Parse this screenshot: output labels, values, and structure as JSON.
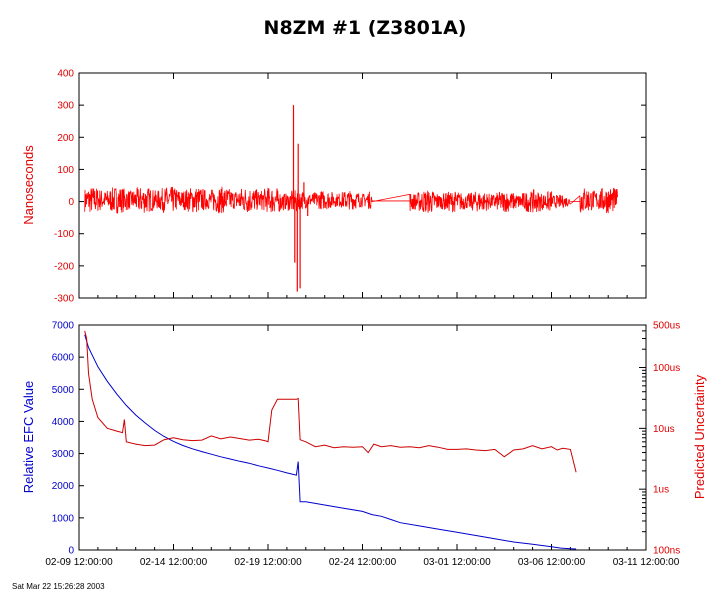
{
  "page": {
    "footer_timestamp": "Sat Mar 22 15:26:28 2003"
  },
  "chart_data": [
    {
      "type": "line",
      "title": "N8ZM #1 (Z3801A)",
      "ylabel": "Nanoseconds",
      "ylim": [
        -300,
        400
      ],
      "yticks": [
        -300,
        -200,
        -100,
        0,
        100,
        200,
        300,
        400
      ],
      "xlim": [
        0,
        30
      ],
      "x_unit": "days from 02-09 12:00:00",
      "grid": false,
      "series": [
        {
          "color": "#ff0000",
          "segments": [
            {
              "x": [
                0.3,
                10.5
              ],
              "amp": 28,
              "base": 5
            },
            {
              "x": [
                10.5,
                11.6
              ],
              "amp": 25,
              "base": 0
            },
            {
              "x": [
                11.6,
                15.5
              ],
              "amp": 20,
              "base": 5
            },
            {
              "x": [
                17.5,
                19.0
              ],
              "amp": 25,
              "base": 0
            },
            {
              "x": [
                19.0,
                24.0
              ],
              "amp": 22,
              "base": 0
            },
            {
              "x": [
                24.0,
                25.0
              ],
              "amp": 25,
              "base": 0
            },
            {
              "x": [
                25.0,
                26.0
              ],
              "amp": 14,
              "base": 0
            },
            {
              "x": [
                26.5,
                28.5
              ],
              "amp": 28,
              "base": 5
            }
          ],
          "spikes": [
            {
              "x": 11.35,
              "y": 300
            },
            {
              "x": 11.42,
              "y": -190
            },
            {
              "x": 11.55,
              "y": -280
            },
            {
              "x": 11.6,
              "y": 180
            },
            {
              "x": 11.7,
              "y": -270
            },
            {
              "x": 11.9,
              "y": 60
            },
            {
              "x": 12.1,
              "y": -45
            }
          ]
        }
      ]
    },
    {
      "type": "line",
      "ylabel": "Relative EFC Value",
      "ylim": [
        0,
        7000
      ],
      "yticks": [
        0,
        1000,
        2000,
        3000,
        4000,
        5000,
        6000,
        7000
      ],
      "y2label": "Predicted Uncertainty",
      "y2_scale": "log",
      "y2lim_ns": [
        100,
        500000
      ],
      "y2ticks": [
        {
          "label": "100ns",
          "value_ns": 100
        },
        {
          "label": "1us",
          "value_ns": 1000
        },
        {
          "label": "10us",
          "value_ns": 10000
        },
        {
          "label": "100us",
          "value_ns": 100000
        },
        {
          "label": "500us",
          "value_ns": 500000
        }
      ],
      "xlim": [
        0,
        30
      ],
      "xticks": [
        {
          "label": "02-09 12:00:00",
          "x": 0
        },
        {
          "label": "02-14 12:00:00",
          "x": 5
        },
        {
          "label": "02-19 12:00:00",
          "x": 10
        },
        {
          "label": "02-24 12:00:00",
          "x": 15
        },
        {
          "label": "03-01 12:00:00",
          "x": 20
        },
        {
          "label": "03-06 12:00:00",
          "x": 25
        },
        {
          "label": "03-11 12:00:00",
          "x": 30
        }
      ],
      "grid": false,
      "series": [
        {
          "color": "#0000cc",
          "axis": "left",
          "x": [
            0.3,
            0.5,
            1,
            1.5,
            2,
            2.5,
            3,
            3.5,
            4,
            4.5,
            5,
            5.5,
            6,
            6.5,
            7,
            7.5,
            8,
            8.5,
            9,
            9.5,
            10,
            10.5,
            11,
            11.5,
            11.6,
            11.7,
            12,
            13,
            14,
            15,
            15.5,
            16,
            16.5,
            17,
            18,
            19,
            20,
            21,
            22,
            23,
            24,
            25,
            25.5,
            26,
            26.3
          ],
          "y": [
            6700,
            6300,
            5700,
            5250,
            4850,
            4500,
            4200,
            3950,
            3720,
            3530,
            3380,
            3250,
            3150,
            3060,
            2980,
            2900,
            2830,
            2760,
            2700,
            2620,
            2550,
            2480,
            2400,
            2330,
            2750,
            1500,
            1500,
            1400,
            1300,
            1200,
            1100,
            1050,
            950,
            850,
            750,
            650,
            550,
            450,
            350,
            250,
            180,
            100,
            60,
            40,
            30
          ]
        },
        {
          "color": "#cc0000",
          "axis": "right",
          "x": [
            0.3,
            0.4,
            0.5,
            0.7,
            1,
            1.5,
            2,
            2.3,
            2.4,
            2.5,
            3,
            3.5,
            4,
            4.5,
            5,
            5.5,
            6,
            6.5,
            7,
            7.5,
            8,
            8.5,
            9,
            9.5,
            9.9,
            10,
            10.2,
            10.5,
            11,
            11.5,
            11.6,
            11.7,
            12,
            12.5,
            13,
            13.5,
            14,
            14.5,
            15,
            15.3,
            15.6,
            16,
            16.5,
            17,
            17.5,
            18,
            18.5,
            19,
            19.5,
            20,
            20.5,
            21,
            21.5,
            22,
            22.5,
            23,
            23.5,
            24,
            24.5,
            25,
            25.3,
            25.6,
            26,
            26.3
          ],
          "y": [
            400000,
            300000,
            80000,
            30000,
            15000,
            10000,
            9000,
            8500,
            14000,
            6000,
            5500,
            5200,
            5300,
            6500,
            7000,
            6500,
            6300,
            6400,
            7500,
            6700,
            7200,
            6800,
            6400,
            6600,
            6200,
            6000,
            20000,
            30000,
            30000,
            30000,
            31000,
            6500,
            6000,
            5000,
            5300,
            4800,
            5000,
            4900,
            5000,
            4000,
            5500,
            5000,
            5200,
            4900,
            5000,
            4800,
            5200,
            4900,
            4500,
            4500,
            4600,
            4400,
            4300,
            4500,
            3400,
            4400,
            4600,
            5200,
            4600,
            5000,
            4400,
            4700,
            4500,
            1900
          ]
        }
      ]
    }
  ]
}
